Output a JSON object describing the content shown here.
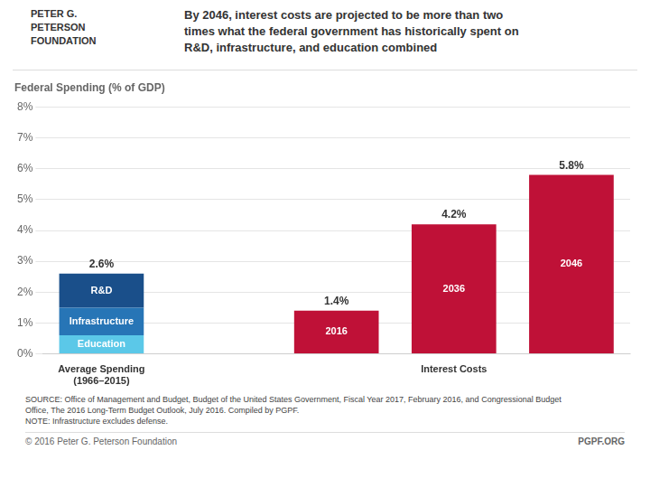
{
  "chart_data": {
    "type": "bar",
    "title": "By 2046, interest costs are projected to be more than two\ntimes what the federal government has historically spent on\nR&D, infrastructure, and education combined",
    "subtitle": "Federal Spending (% of GDP)",
    "categories": [
      "Average Spending\n(1966–2015)",
      null,
      null,
      "Interest Costs",
      null
    ],
    "series": [
      {
        "name": "Education",
        "color": "#5BC8E8",
        "values": [
          0.6,
          null,
          null,
          null,
          null
        ]
      },
      {
        "name": "Infrastructure",
        "color": "#2775B6",
        "values": [
          0.9,
          null,
          null,
          null,
          null
        ]
      },
      {
        "name": "R&D",
        "color": "#1A4F8A",
        "values": [
          1.1,
          null,
          null,
          null,
          null
        ]
      },
      {
        "name": "2016",
        "color": "#BF1137",
        "values": [
          null,
          null,
          1.4,
          null,
          null
        ]
      },
      {
        "name": "2036",
        "color": "#BF1137",
        "values": [
          null,
          null,
          null,
          4.2,
          null
        ]
      },
      {
        "name": "2046",
        "color": "#BF1137",
        "values": [
          null,
          null,
          null,
          null,
          5.8
        ]
      }
    ],
    "stacked": true,
    "stack_totals": [
      2.6,
      null,
      1.4,
      4.2,
      5.8
    ],
    "stack_total_labels": [
      "2.6%",
      null,
      "1.4%",
      "4.2%",
      "5.8%"
    ],
    "ylim": [
      0,
      8
    ],
    "yticks": [
      {
        "value": 0,
        "label": "0%"
      },
      {
        "value": 1,
        "label": "1%"
      },
      {
        "value": 2,
        "label": "2%"
      },
      {
        "value": 3,
        "label": "3%"
      },
      {
        "value": 4,
        "label": "4%"
      },
      {
        "value": 5,
        "label": "5%"
      },
      {
        "value": 6,
        "label": "6%"
      },
      {
        "value": 7,
        "label": "7%"
      },
      {
        "value": 8,
        "label": "8%"
      }
    ],
    "tick_labels": true,
    "grid": true,
    "annotations": [
      "PETER G.\nPETERSON\nFOUNDATION",
      "SOURCE: Office of Management and Budget, Budget of the United States Government, Fiscal Year 2017, February 2016, and Congressional Budget",
      "Office, The 2016 Long-Term Budget Outlook, July 2016. Compiled by PGPF.",
      "NOTE: Infrastructure excludes defense.",
      "© 2016 Peter G. Peterson Foundation",
      "PGPF.ORG"
    ]
  }
}
